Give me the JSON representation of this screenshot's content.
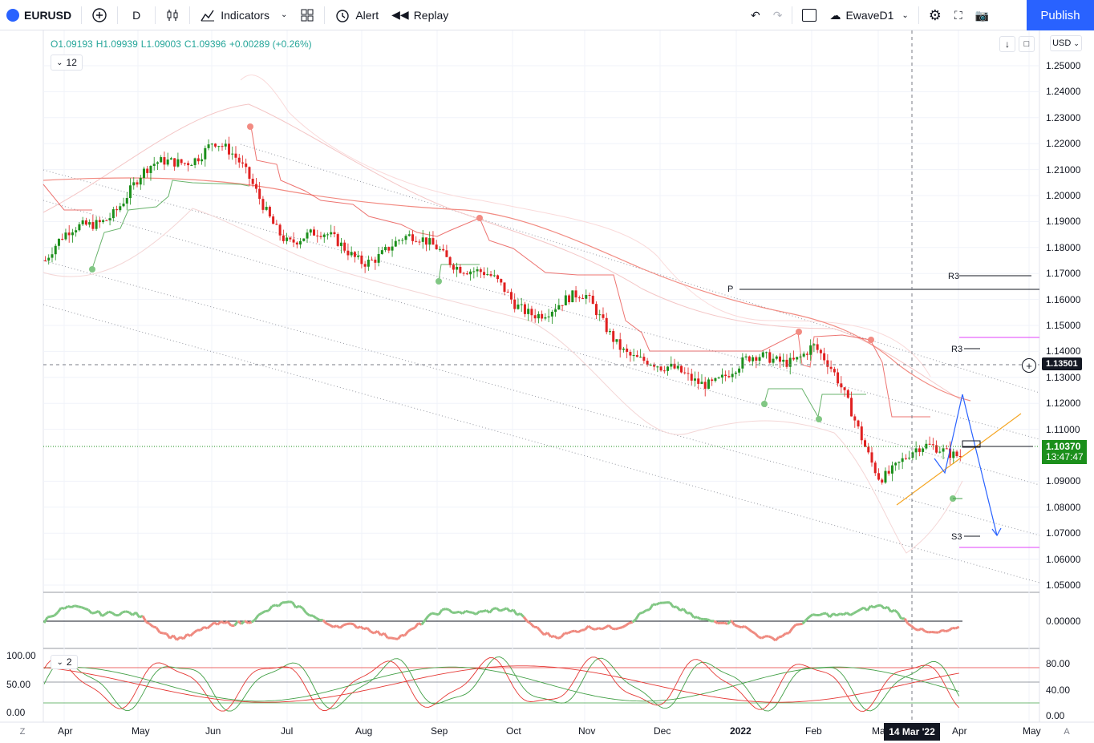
{
  "toolbar": {
    "symbol": "EURUSD",
    "interval": "D",
    "indicators_label": "Indicators",
    "alert_label": "Alert",
    "replay_label": "Replay",
    "layout_name": "EwaveD1",
    "publish_label": "Publish"
  },
  "legend": {
    "open": "O1.09193",
    "high": "H1.09939",
    "low": "L1.09003",
    "close": "C1.09396",
    "change": "+0.00289 (+0.26%)",
    "collapse_count": "12",
    "pane2_count": "2"
  },
  "price_axis": {
    "currency": "USD",
    "ticks": [
      "1.25000",
      "1.24000",
      "1.23000",
      "1.22000",
      "1.21000",
      "1.20000",
      "1.19000",
      "1.18000",
      "1.17000",
      "1.16000",
      "1.15000",
      "1.14000",
      "1.13000",
      "1.12000",
      "1.11000",
      "1.09000",
      "1.08000",
      "1.07000",
      "1.06000",
      "1.05000"
    ],
    "crosshair_price": "1.13501",
    "last_price": "1.10370",
    "countdown": "13:47:47",
    "osc_tick": "0.00000",
    "stoch_right_ticks": [
      "80.00",
      "40.00",
      "0.00"
    ],
    "stoch_left_ticks": [
      "100.00",
      "50.00",
      "0.00"
    ]
  },
  "time_axis": {
    "labels": [
      "Apr",
      "May",
      "Jun",
      "Jul",
      "Aug",
      "Sep",
      "Oct",
      "Nov",
      "Dec",
      "2022",
      "Feb",
      "Ma",
      "Apr",
      "May"
    ],
    "crosshair_date": "14 Mar '22",
    "left_btn": "Z",
    "right_btn": "A"
  },
  "annotations": {
    "pivot_p": "P",
    "r3_upper": "R3",
    "r3_lower": "R3",
    "s3": "S3"
  },
  "colors": {
    "up": "#26a69a",
    "candle_up": "#1b8f1b",
    "candle_down": "#e02020",
    "accent": "#2962ff",
    "last_price_bg": "#1b8f1b"
  },
  "chart_data": {
    "type": "candlestick",
    "xlabel": "",
    "ylabel": "",
    "ylim": [
      1.045,
      1.255
    ],
    "x_range": [
      "Apr 2021",
      "May 2022"
    ],
    "ohlc_last": {
      "open": 1.09193,
      "high": 1.09939,
      "low": 1.09003,
      "close": 1.09396
    },
    "approx_close_path": [
      {
        "x": "Apr",
        "y": 1.175
      },
      {
        "x": "May",
        "y": 1.205
      },
      {
        "x": "Jun",
        "y": 1.222
      },
      {
        "x": "Jul",
        "y": 1.185
      },
      {
        "x": "Aug",
        "y": 1.178
      },
      {
        "x": "Sep",
        "y": 1.182
      },
      {
        "x": "Oct",
        "y": 1.158
      },
      {
        "x": "Nov",
        "y": 1.158
      },
      {
        "x": "Dec",
        "y": 1.13
      },
      {
        "x": "2022",
        "y": 1.132
      },
      {
        "x": "Feb",
        "y": 1.143
      },
      {
        "x": "Ma",
        "y": 1.095
      },
      {
        "x": "Apr",
        "y": 1.104
      }
    ]
  }
}
